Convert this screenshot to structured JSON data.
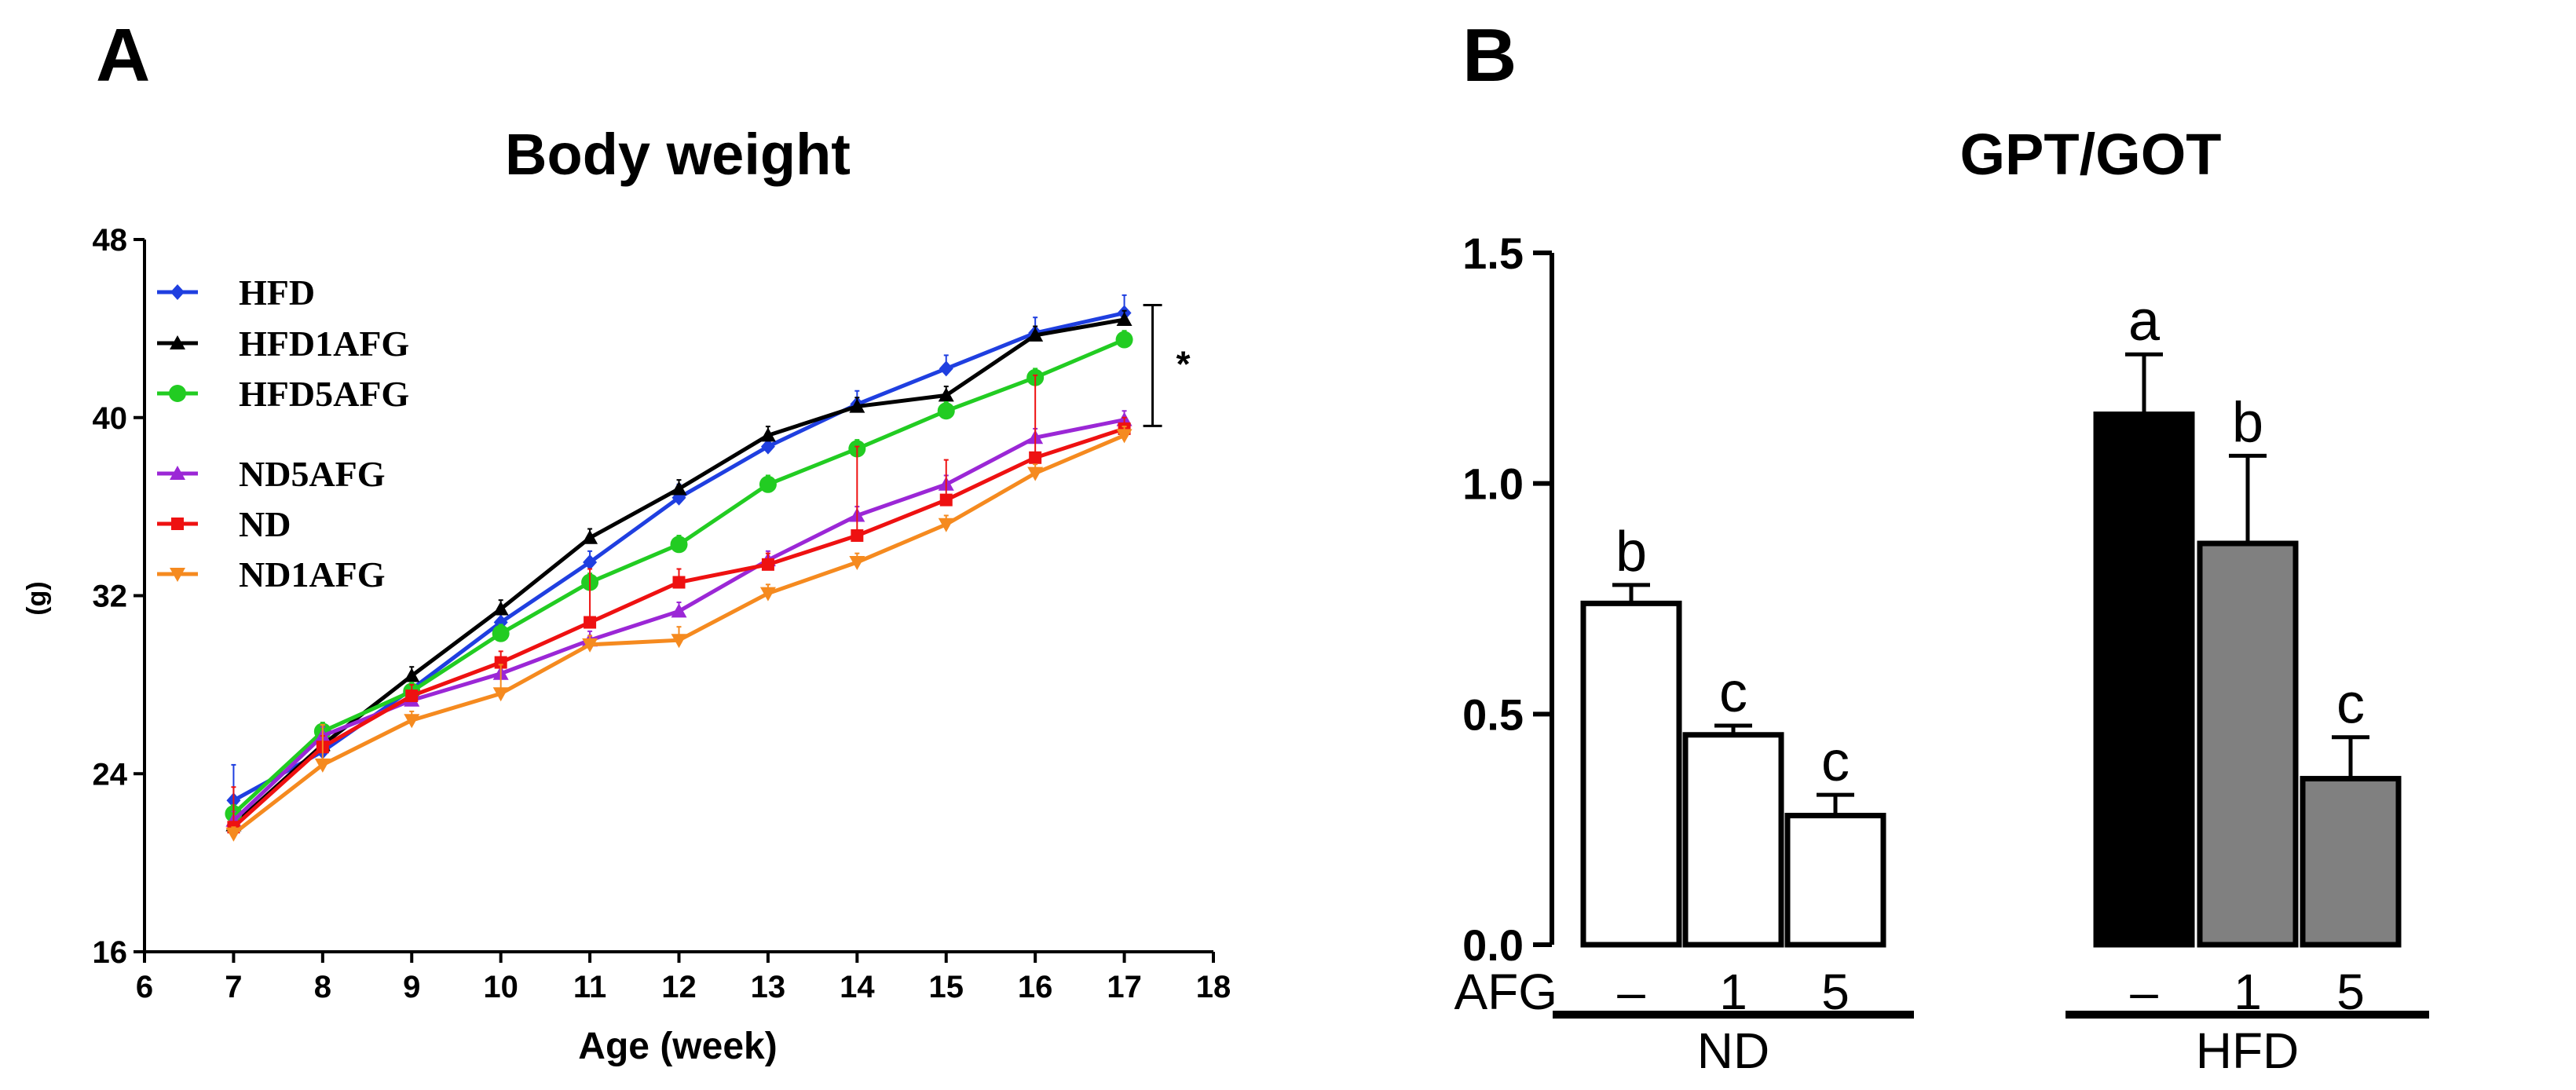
{
  "panels": {
    "A": {
      "letter": "A"
    },
    "B": {
      "letter": "B"
    }
  },
  "chart_data": [
    {
      "type": "line",
      "title": "Body weight",
      "xlabel": "Age (week)",
      "ylabel": "(g)",
      "xlim": [
        6,
        18
      ],
      "ylim": [
        16,
        48
      ],
      "xticks": [
        6,
        7,
        8,
        9,
        10,
        11,
        12,
        13,
        14,
        15,
        16,
        17,
        18
      ],
      "yticks": [
        16,
        24,
        32,
        40,
        48
      ],
      "legend_position": "top-left",
      "x": [
        7,
        8,
        9,
        10,
        11,
        12,
        13,
        14,
        15,
        16,
        17
      ],
      "series": [
        {
          "name": "HFD",
          "color": "#1f3fe0",
          "marker": "diamond",
          "values": [
            22.8,
            25.0,
            27.8,
            30.8,
            33.5,
            36.4,
            38.7,
            40.6,
            42.2,
            43.8,
            44.7
          ],
          "errors": [
            1.6,
            0.6,
            0.5,
            0.5,
            0.5,
            0.6,
            0.5,
            0.6,
            0.6,
            0.7,
            0.8
          ]
        },
        {
          "name": "HFD1AFG",
          "color": "#000000",
          "marker": "triangle-up",
          "values": [
            21.7,
            25.3,
            28.4,
            31.4,
            34.6,
            36.8,
            39.2,
            40.5,
            41.0,
            43.7,
            44.4
          ],
          "errors": [
            0.4,
            0.4,
            0.4,
            0.4,
            0.4,
            0.4,
            0.4,
            0.4,
            0.4,
            0.4,
            0.4
          ]
        },
        {
          "name": "HFD5AFG",
          "color": "#22cc22",
          "marker": "circle",
          "values": [
            22.2,
            25.9,
            27.7,
            30.3,
            32.6,
            34.3,
            37.0,
            38.6,
            40.3,
            41.8,
            43.5
          ],
          "errors": [
            0.4,
            0.4,
            0.4,
            0.4,
            0.4,
            0.4,
            0.4,
            0.4,
            0.4,
            0.4,
            0.4
          ]
        },
        {
          "name": "ND5AFG",
          "color": "#9b27d6",
          "marker": "triangle-up",
          "values": [
            21.9,
            25.7,
            27.3,
            28.5,
            30.0,
            31.3,
            33.6,
            35.6,
            37.0,
            39.1,
            39.9
          ],
          "errors": [
            0.4,
            0.4,
            0.4,
            0.4,
            0.4,
            0.4,
            0.4,
            0.4,
            0.4,
            0.4,
            0.4
          ]
        },
        {
          "name": "ND",
          "color": "#ee1111",
          "marker": "square",
          "values": [
            21.6,
            25.2,
            27.5,
            29.0,
            30.8,
            32.6,
            33.4,
            34.7,
            36.3,
            38.2,
            39.5
          ],
          "errors": [
            1.8,
            0.5,
            0.5,
            0.5,
            2.4,
            0.6,
            0.5,
            4.0,
            1.8,
            3.7,
            0.5
          ]
        },
        {
          "name": "ND1AFG",
          "color": "#f58a1f",
          "marker": "triangle-down",
          "values": [
            21.3,
            24.4,
            26.4,
            27.6,
            29.8,
            30.0,
            32.1,
            33.5,
            35.2,
            37.5,
            39.2
          ],
          "errors": [
            0.3,
            1.8,
            0.4,
            1.3,
            0.4,
            0.6,
            0.4,
            0.4,
            0.4,
            0.4,
            0.4
          ]
        }
      ],
      "annotations": [
        {
          "text": "*",
          "between": [
            "HFD",
            "ND1AFG"
          ],
          "at_x": 17
        }
      ]
    },
    {
      "type": "bar",
      "title": "GPT/GOT",
      "xlabel": "",
      "ylabel": "",
      "ylim": [
        0.0,
        1.5
      ],
      "yticks": [
        "0.0",
        "0.5",
        "1.0",
        "1.5"
      ],
      "row_label": "AFG",
      "categories": [
        "–",
        "1",
        "5",
        "–",
        "1",
        "5"
      ],
      "groups": [
        {
          "label": "ND",
          "indices": [
            0,
            1,
            2
          ]
        },
        {
          "label": "HFD",
          "indices": [
            3,
            4,
            5
          ]
        }
      ],
      "values": [
        0.74,
        0.455,
        0.28,
        1.15,
        0.87,
        0.36
      ],
      "errors": [
        0.04,
        0.02,
        0.045,
        0.13,
        0.19,
        0.09
      ],
      "fills": [
        "#ffffff",
        "#ffffff",
        "#ffffff",
        "#000000",
        "#808080",
        "#808080"
      ],
      "significance": [
        "b",
        "c",
        "c",
        "a",
        "b",
        "c"
      ]
    }
  ]
}
